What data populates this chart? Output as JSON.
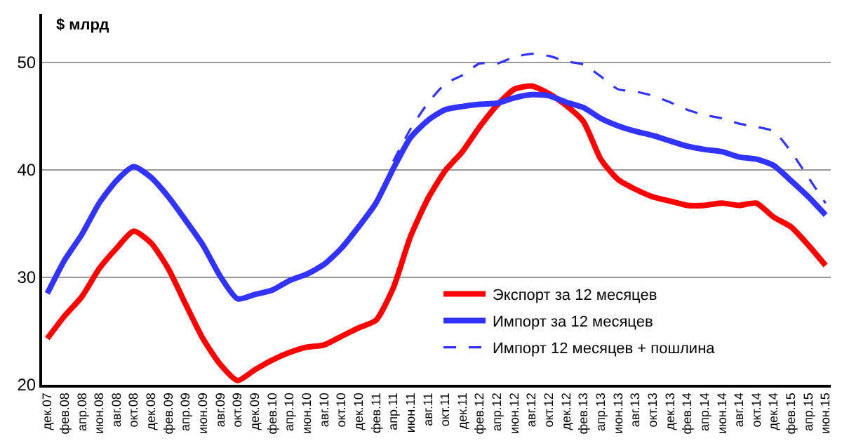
{
  "chart_data": {
    "type": "line",
    "ylabel": "$ млрд",
    "categories": [
      "дек.07",
      "фев.08",
      "апр.08",
      "июн.08",
      "авг.08",
      "окт.08",
      "дек.08",
      "фев.09",
      "апр.09",
      "июн.09",
      "авг.09",
      "окт.09",
      "дек.09",
      "фев.10",
      "апр.10",
      "июн.10",
      "авг.10",
      "окт.10",
      "дек.10",
      "фев.11",
      "апр.11",
      "июн.11",
      "авг.11",
      "окт.11",
      "дек.11",
      "фев.12",
      "апр.12",
      "июн.12",
      "авг.12",
      "окт.12",
      "дек.12",
      "фев.13",
      "апр.13",
      "июн.13",
      "авг.13",
      "окт.13",
      "дек.13",
      "фев.14",
      "апр.14",
      "июн.14",
      "авг.14",
      "окт.14",
      "дек.14",
      "фев.15",
      "апр.15",
      "июн.15"
    ],
    "series": [
      {
        "name": "Экспорт за 12 месяцев",
        "color": "#ff0000",
        "line_style": "solid",
        "values": [
          24.3,
          26.4,
          28.2,
          30.8,
          32.7,
          34.3,
          33.2,
          30.8,
          27.5,
          24.3,
          21.9,
          20.4,
          21.4,
          22.3,
          23.0,
          23.5,
          23.7,
          24.5,
          25.3,
          26.0,
          29.0,
          33.8,
          37.3,
          39.9,
          41.7,
          44.0,
          46.0,
          47.5,
          47.8,
          47.1,
          46.0,
          44.5,
          41.0,
          39.1,
          38.2,
          37.5,
          37.1,
          36.7,
          36.7,
          36.9,
          36.7,
          36.9,
          35.6,
          34.7,
          33.0,
          31.1
        ]
      },
      {
        "name": "Импорт за 12 месяцев",
        "color": "#3333ff",
        "line_style": "solid",
        "values": [
          28.5,
          31.6,
          34.0,
          36.9,
          39.0,
          40.3,
          39.3,
          37.5,
          35.3,
          33.0,
          30.1,
          28.0,
          28.4,
          28.8,
          29.7,
          30.3,
          31.2,
          32.7,
          34.7,
          36.9,
          40.1,
          43.0,
          44.6,
          45.6,
          45.9,
          46.1,
          46.2,
          46.7,
          47.0,
          46.9,
          46.3,
          45.8,
          44.8,
          44.1,
          43.6,
          43.2,
          42.7,
          42.2,
          41.9,
          41.7,
          41.2,
          41.0,
          40.4,
          39.0,
          37.5,
          35.8
        ]
      },
      {
        "name": "Импорт 12 месяцев + пошлина",
        "color": "#3333ff",
        "line_style": "dashed",
        "values": [
          null,
          null,
          null,
          null,
          null,
          null,
          null,
          null,
          null,
          null,
          null,
          null,
          null,
          null,
          null,
          null,
          null,
          null,
          null,
          null,
          40.8,
          43.8,
          46.2,
          48.0,
          48.8,
          49.9,
          49.9,
          50.5,
          50.8,
          50.6,
          50.1,
          49.8,
          48.7,
          47.5,
          47.3,
          46.9,
          46.3,
          45.6,
          45.1,
          44.8,
          44.3,
          44.0,
          43.6,
          41.7,
          39.3,
          36.9
        ]
      }
    ],
    "ylim": [
      20,
      54.5
    ],
    "yticks": [
      20,
      30,
      40,
      50
    ],
    "grid": "y",
    "legend": "bottom right",
    "marker": "none"
  }
}
